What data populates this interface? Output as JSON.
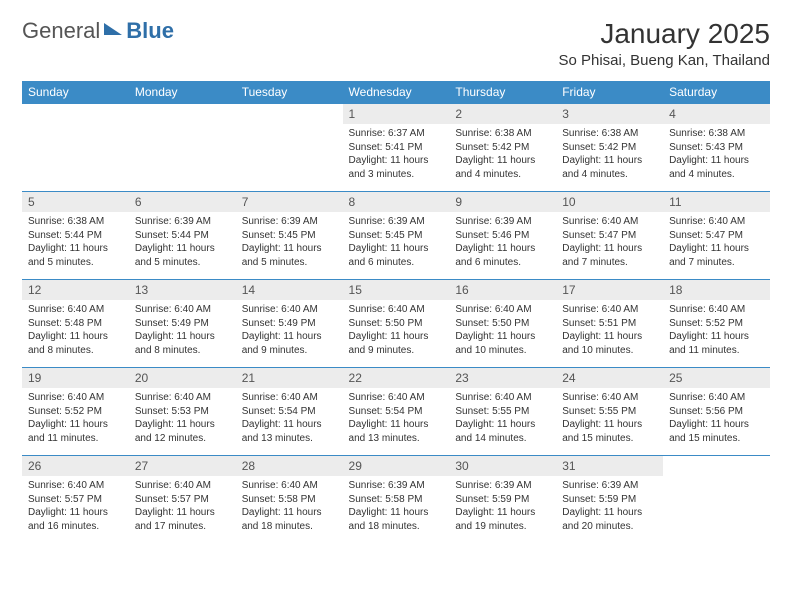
{
  "logo": {
    "text1": "General",
    "text2": "Blue"
  },
  "title": "January 2025",
  "location": "So Phisai, Bueng Kan, Thailand",
  "colors": {
    "header_bg": "#3b8bc6",
    "header_text": "#ffffff",
    "daynum_bg": "#ececec",
    "border": "#3b8bc6",
    "body_text": "#333333"
  },
  "typography": {
    "title_fontsize": 28,
    "location_fontsize": 15,
    "dayheader_fontsize": 12,
    "body_fontsize": 10
  },
  "day_headers": [
    "Sunday",
    "Monday",
    "Tuesday",
    "Wednesday",
    "Thursday",
    "Friday",
    "Saturday"
  ],
  "weeks": [
    [
      null,
      null,
      null,
      {
        "n": "1",
        "sr": "6:37 AM",
        "ss": "5:41 PM",
        "dl": "11 hours and 3 minutes."
      },
      {
        "n": "2",
        "sr": "6:38 AM",
        "ss": "5:42 PM",
        "dl": "11 hours and 4 minutes."
      },
      {
        "n": "3",
        "sr": "6:38 AM",
        "ss": "5:42 PM",
        "dl": "11 hours and 4 minutes."
      },
      {
        "n": "4",
        "sr": "6:38 AM",
        "ss": "5:43 PM",
        "dl": "11 hours and 4 minutes."
      }
    ],
    [
      {
        "n": "5",
        "sr": "6:38 AM",
        "ss": "5:44 PM",
        "dl": "11 hours and 5 minutes."
      },
      {
        "n": "6",
        "sr": "6:39 AM",
        "ss": "5:44 PM",
        "dl": "11 hours and 5 minutes."
      },
      {
        "n": "7",
        "sr": "6:39 AM",
        "ss": "5:45 PM",
        "dl": "11 hours and 5 minutes."
      },
      {
        "n": "8",
        "sr": "6:39 AM",
        "ss": "5:45 PM",
        "dl": "11 hours and 6 minutes."
      },
      {
        "n": "9",
        "sr": "6:39 AM",
        "ss": "5:46 PM",
        "dl": "11 hours and 6 minutes."
      },
      {
        "n": "10",
        "sr": "6:40 AM",
        "ss": "5:47 PM",
        "dl": "11 hours and 7 minutes."
      },
      {
        "n": "11",
        "sr": "6:40 AM",
        "ss": "5:47 PM",
        "dl": "11 hours and 7 minutes."
      }
    ],
    [
      {
        "n": "12",
        "sr": "6:40 AM",
        "ss": "5:48 PM",
        "dl": "11 hours and 8 minutes."
      },
      {
        "n": "13",
        "sr": "6:40 AM",
        "ss": "5:49 PM",
        "dl": "11 hours and 8 minutes."
      },
      {
        "n": "14",
        "sr": "6:40 AM",
        "ss": "5:49 PM",
        "dl": "11 hours and 9 minutes."
      },
      {
        "n": "15",
        "sr": "6:40 AM",
        "ss": "5:50 PM",
        "dl": "11 hours and 9 minutes."
      },
      {
        "n": "16",
        "sr": "6:40 AM",
        "ss": "5:50 PM",
        "dl": "11 hours and 10 minutes."
      },
      {
        "n": "17",
        "sr": "6:40 AM",
        "ss": "5:51 PM",
        "dl": "11 hours and 10 minutes."
      },
      {
        "n": "18",
        "sr": "6:40 AM",
        "ss": "5:52 PM",
        "dl": "11 hours and 11 minutes."
      }
    ],
    [
      {
        "n": "19",
        "sr": "6:40 AM",
        "ss": "5:52 PM",
        "dl": "11 hours and 11 minutes."
      },
      {
        "n": "20",
        "sr": "6:40 AM",
        "ss": "5:53 PM",
        "dl": "11 hours and 12 minutes."
      },
      {
        "n": "21",
        "sr": "6:40 AM",
        "ss": "5:54 PM",
        "dl": "11 hours and 13 minutes."
      },
      {
        "n": "22",
        "sr": "6:40 AM",
        "ss": "5:54 PM",
        "dl": "11 hours and 13 minutes."
      },
      {
        "n": "23",
        "sr": "6:40 AM",
        "ss": "5:55 PM",
        "dl": "11 hours and 14 minutes."
      },
      {
        "n": "24",
        "sr": "6:40 AM",
        "ss": "5:55 PM",
        "dl": "11 hours and 15 minutes."
      },
      {
        "n": "25",
        "sr": "6:40 AM",
        "ss": "5:56 PM",
        "dl": "11 hours and 15 minutes."
      }
    ],
    [
      {
        "n": "26",
        "sr": "6:40 AM",
        "ss": "5:57 PM",
        "dl": "11 hours and 16 minutes."
      },
      {
        "n": "27",
        "sr": "6:40 AM",
        "ss": "5:57 PM",
        "dl": "11 hours and 17 minutes."
      },
      {
        "n": "28",
        "sr": "6:40 AM",
        "ss": "5:58 PM",
        "dl": "11 hours and 18 minutes."
      },
      {
        "n": "29",
        "sr": "6:39 AM",
        "ss": "5:58 PM",
        "dl": "11 hours and 18 minutes."
      },
      {
        "n": "30",
        "sr": "6:39 AM",
        "ss": "5:59 PM",
        "dl": "11 hours and 19 minutes."
      },
      {
        "n": "31",
        "sr": "6:39 AM",
        "ss": "5:59 PM",
        "dl": "11 hours and 20 minutes."
      },
      null
    ]
  ],
  "labels": {
    "sunrise": "Sunrise:",
    "sunset": "Sunset:",
    "daylight": "Daylight:"
  }
}
